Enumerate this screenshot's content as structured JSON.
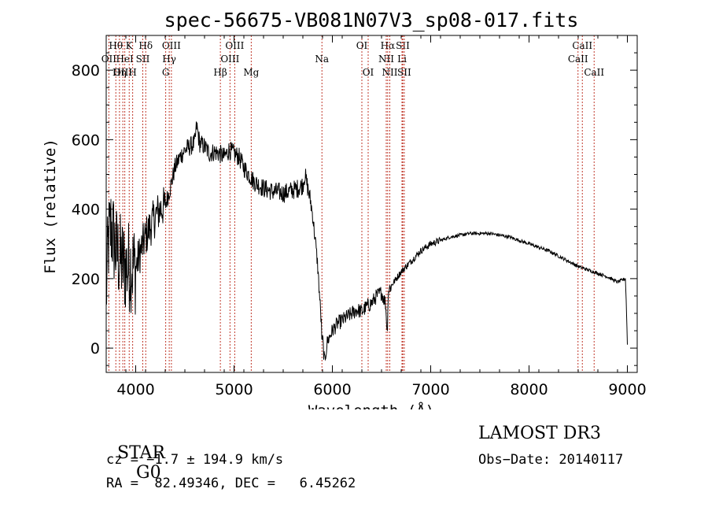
{
  "chart_data": {
    "type": "line",
    "title": "spec-56675-VB081N07V3_sp08-017.fits",
    "xlabel": "Wavelength (Å)",
    "ylabel": "Flux (relative)",
    "xlim": [
      3700,
      9100
    ],
    "ylim": [
      -70,
      900
    ],
    "xticks": [
      4000,
      5000,
      6000,
      7000,
      8000,
      9000
    ],
    "yticks": [
      0,
      200,
      400,
      600,
      800
    ],
    "series": [
      {
        "name": "flux",
        "anchors_x": [
          3700,
          3720,
          3750,
          3800,
          3850,
          3900,
          3950,
          4000,
          4050,
          4100,
          4150,
          4200,
          4250,
          4300,
          4350,
          4400,
          4450,
          4500,
          4550,
          4600,
          4620,
          4650,
          4700,
          4750,
          4800,
          4850,
          4900,
          4950,
          5000,
          5050,
          5100,
          5150,
          5200,
          5250,
          5300,
          5350,
          5400,
          5450,
          5500,
          5550,
          5600,
          5650,
          5700,
          5720,
          5750,
          5780,
          5800,
          5830,
          5850,
          5870,
          5890,
          5895,
          5900,
          5920,
          5950,
          6000,
          6050,
          6100,
          6150,
          6200,
          6250,
          6300,
          6350,
          6400,
          6450,
          6500,
          6540,
          6560,
          6565,
          6575,
          6600,
          6650,
          6700,
          6750,
          6800,
          6850,
          6900,
          6950,
          7000,
          7100,
          7200,
          7300,
          7400,
          7500,
          7600,
          7700,
          7800,
          7900,
          8000,
          8100,
          8200,
          8300,
          8400,
          8500,
          8600,
          8700,
          8800,
          8900,
          8980,
          8990,
          9000
        ],
        "anchors_y": [
          150,
          300,
          350,
          280,
          250,
          230,
          240,
          230,
          280,
          320,
          350,
          380,
          400,
          410,
          460,
          520,
          550,
          570,
          580,
          590,
          640,
          590,
          580,
          560,
          565,
          560,
          550,
          570,
          560,
          550,
          520,
          500,
          480,
          470,
          460,
          455,
          450,
          450,
          445,
          450,
          455,
          460,
          470,
          500,
          460,
          420,
          380,
          300,
          240,
          150,
          60,
          0,
          30,
          -40,
          20,
          50,
          70,
          80,
          90,
          100,
          110,
          105,
          120,
          130,
          150,
          160,
          130,
          40,
          150,
          170,
          180,
          200,
          220,
          235,
          250,
          265,
          280,
          290,
          300,
          310,
          320,
          325,
          330,
          330,
          330,
          325,
          320,
          310,
          300,
          290,
          280,
          265,
          250,
          235,
          225,
          215,
          205,
          190,
          200,
          120,
          10
        ],
        "noise_ranges": [
          {
            "from": 3700,
            "to": 4000,
            "amp": 140
          },
          {
            "from": 4000,
            "to": 4300,
            "amp": 60
          },
          {
            "from": 4300,
            "to": 5800,
            "amp": 28
          },
          {
            "from": 5800,
            "to": 6600,
            "amp": 22
          },
          {
            "from": 6600,
            "to": 7100,
            "amp": 10
          },
          {
            "from": 7100,
            "to": 9000,
            "amp": 5
          }
        ]
      }
    ],
    "line_style": "solid black",
    "marker_color": "#c0392b",
    "spectral_lines": [
      {
        "name": "OII",
        "wave": 3727,
        "row": 2
      },
      {
        "name": "Hθ",
        "wave": 3798,
        "row": 1
      },
      {
        "name": "OIII",
        "wave": 3869,
        "row": 3
      },
      {
        "name": "HeI",
        "wave": 3889,
        "row": 2
      },
      {
        "name": "Hη",
        "wave": 3835,
        "row": 3
      },
      {
        "name": "K",
        "wave": 3934,
        "row": 1
      },
      {
        "name": "SII",
        "wave": 4072,
        "row": 2
      },
      {
        "name": "H",
        "wave": 3969,
        "row": 3
      },
      {
        "name": "Hδ",
        "wave": 4102,
        "row": 1
      },
      {
        "name": "OIII",
        "wave": 4363,
        "row": 1
      },
      {
        "name": "Hγ",
        "wave": 4341,
        "row": 2
      },
      {
        "name": "G",
        "wave": 4305,
        "row": 3
      },
      {
        "name": "Hβ",
        "wave": 4861,
        "row": 3
      },
      {
        "name": "OIII",
        "wave": 5007,
        "row": 1
      },
      {
        "name": "OIII",
        "wave": 4959,
        "row": 2
      },
      {
        "name": "Mg",
        "wave": 5175,
        "row": 3
      },
      {
        "name": "Na",
        "wave": 5894,
        "row": 2
      },
      {
        "name": "OI",
        "wave": 6300,
        "row": 1
      },
      {
        "name": "OI",
        "wave": 6364,
        "row": 3
      },
      {
        "name": "Hα",
        "wave": 6563,
        "row": 1
      },
      {
        "name": "NII",
        "wave": 6548,
        "row": 2
      },
      {
        "name": "NII",
        "wave": 6584,
        "row": 3
      },
      {
        "name": "SII",
        "wave": 6716,
        "row": 1
      },
      {
        "name": "Li",
        "wave": 6708,
        "row": 2
      },
      {
        "name": "SII",
        "wave": 6731,
        "row": 3
      },
      {
        "name": "CaII",
        "wave": 8542,
        "row": 1
      },
      {
        "name": "CaII",
        "wave": 8498,
        "row": 2
      },
      {
        "name": "CaII",
        "wave": 8662,
        "row": 3
      }
    ]
  },
  "info": {
    "object_class": "STAR",
    "subclass": "G0",
    "redshift": "cz = −1.7 ± 194.9 km/s",
    "coords": "RA =  82.49346, DEC =   6.45262",
    "survey": "LAMOST DR3",
    "obs_date": "Obs−Date: 20140117"
  }
}
